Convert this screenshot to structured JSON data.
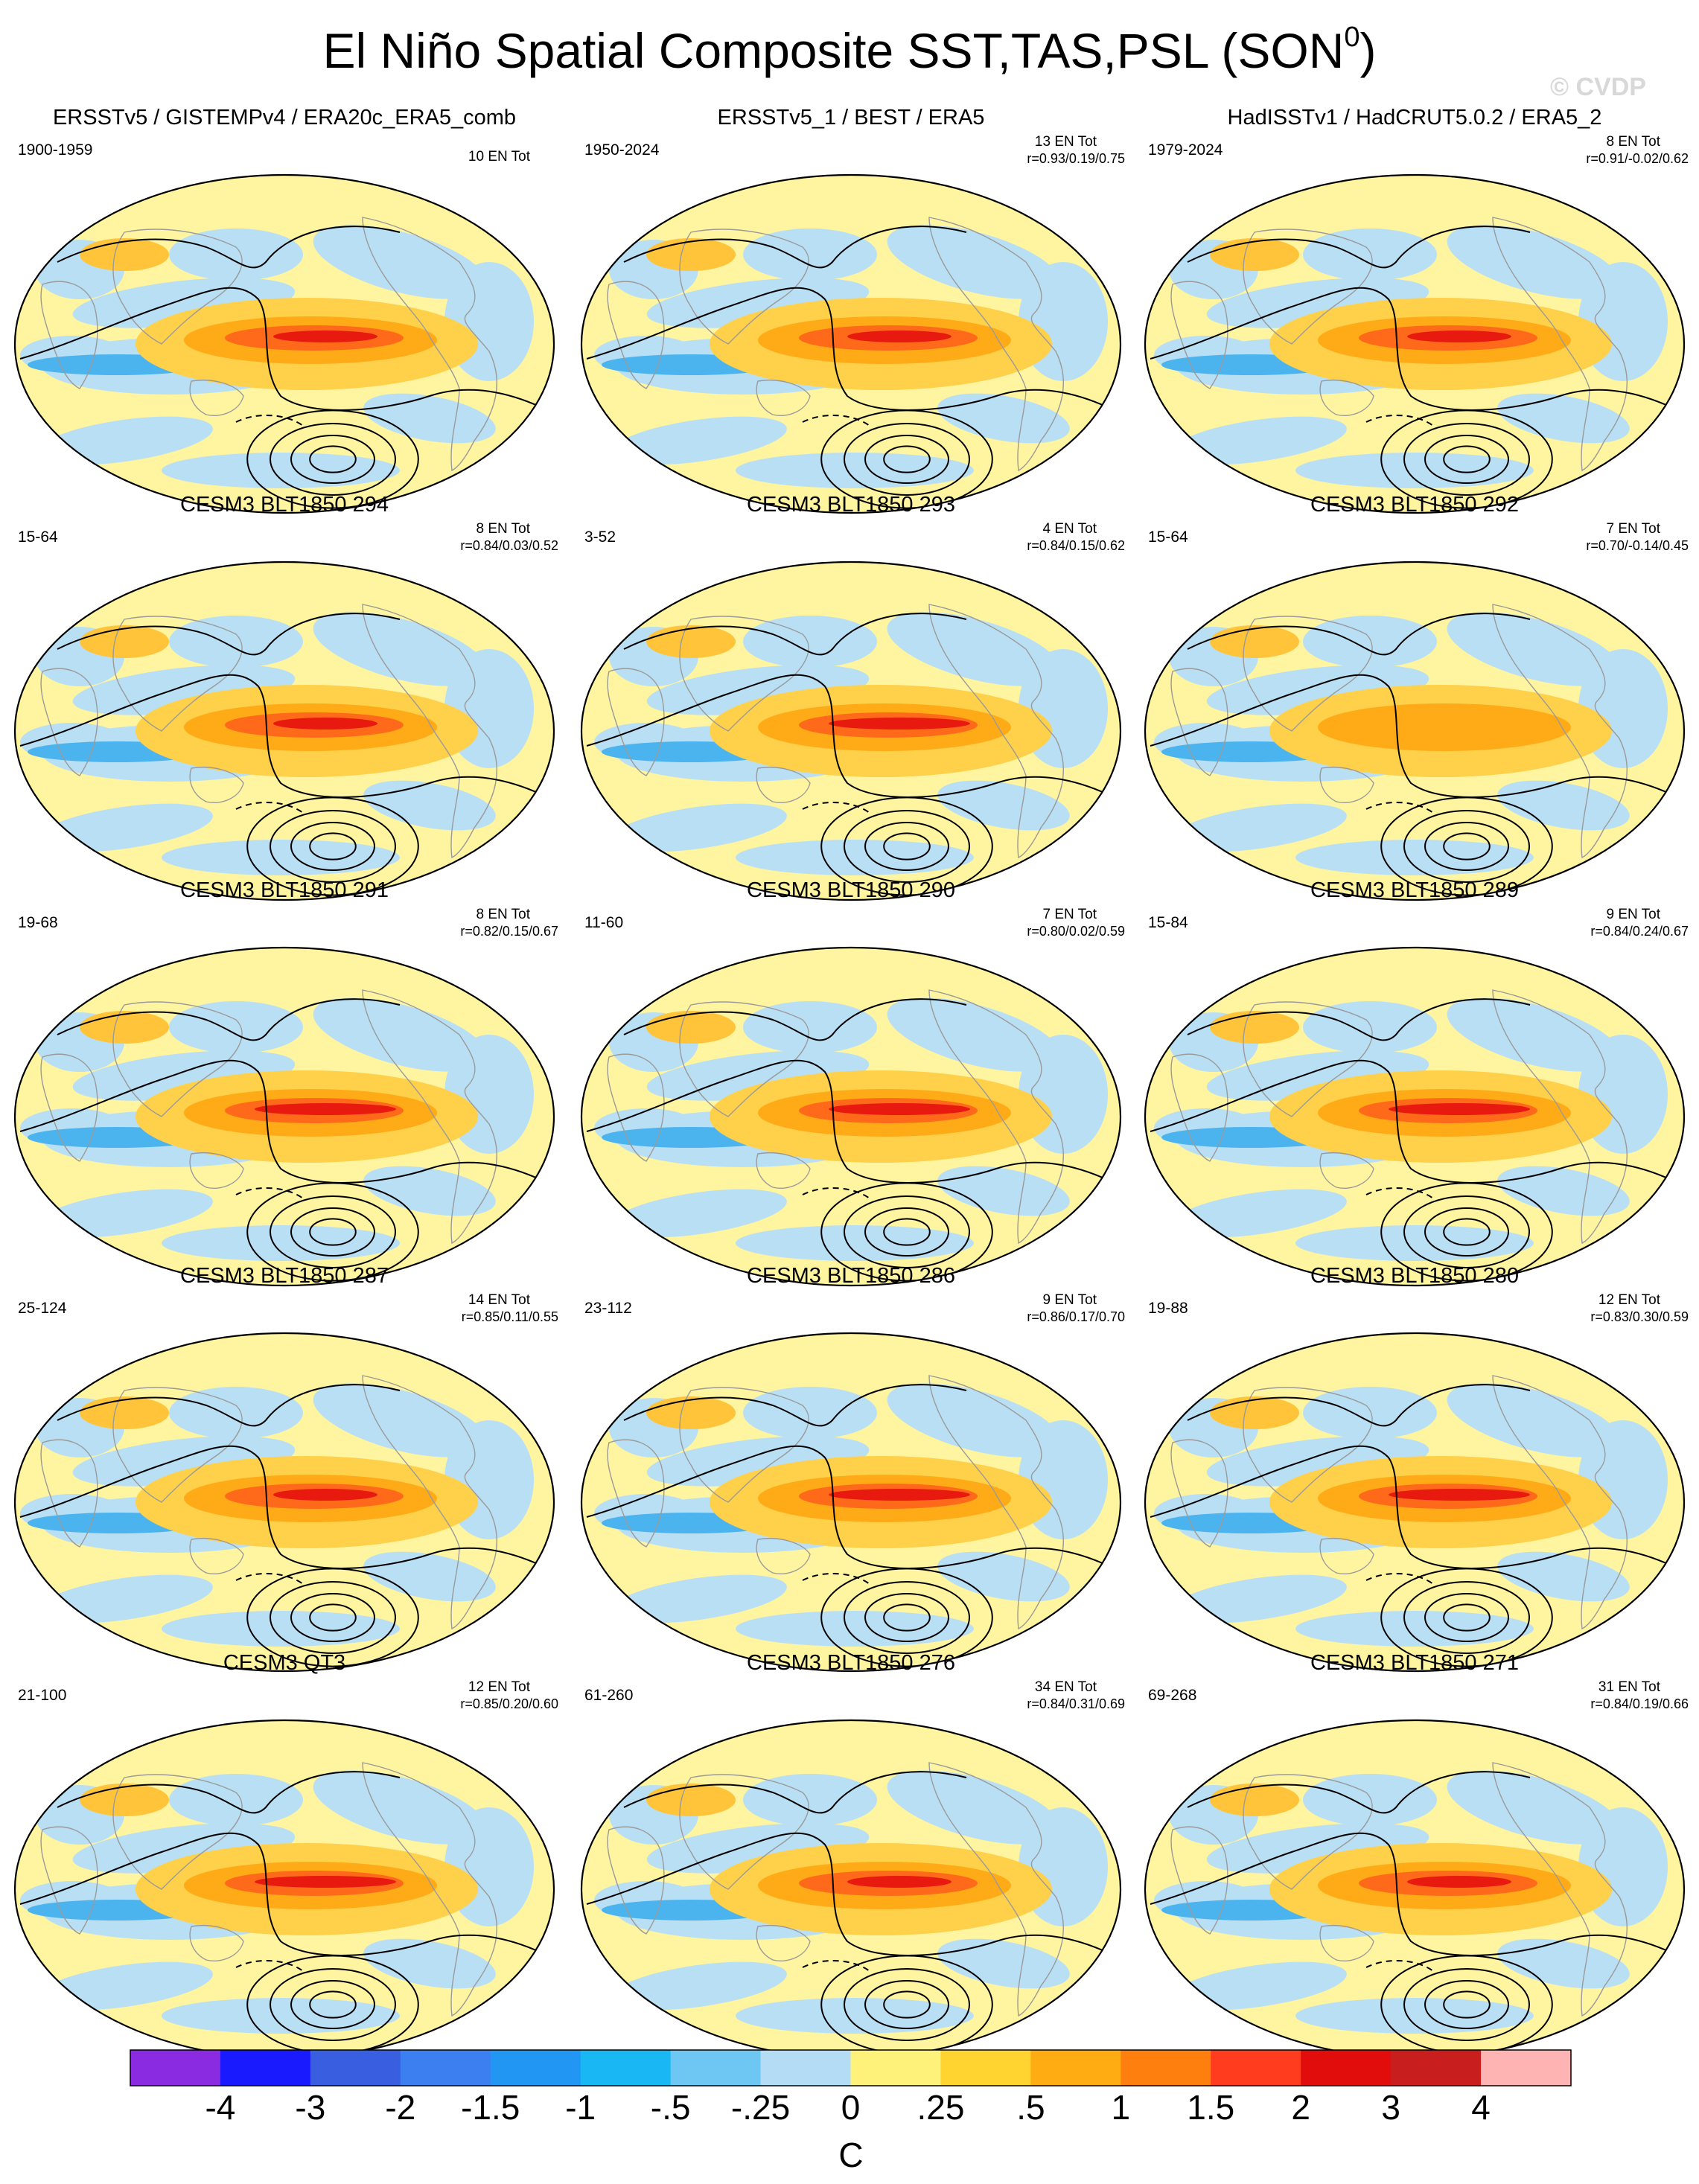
{
  "figure": {
    "title": "El Niño Spatial Composite SST,TAS,PSL (SON",
    "title_superscript": "0",
    "title_close": ")",
    "watermark": "© CVDP"
  },
  "panels": [
    {
      "title": "ERSSTv5 / GISTEMPv4 / ERA20c_ERA5_comb",
      "years": "1900-1959",
      "tot": "10 EN Tot",
      "stats": "",
      "level": "mid"
    },
    {
      "title": "ERSSTv5_1 / BEST / ERA5",
      "years": "1950-2024",
      "tot": "13 EN Tot",
      "stats": "r=0.93/0.19/0.75",
      "level": "mid"
    },
    {
      "title": "HadISSTv1 / HadCRUT5.0.2 / ERA5_2",
      "years": "1979-2024",
      "tot": "8 EN Tot",
      "stats": "r=0.91/-0.02/0.62",
      "level": "mid"
    },
    {
      "title": "CESM3 BLT1850 294",
      "years": "15-64",
      "tot": "8 EN Tot",
      "stats": "r=0.84/0.03/0.52",
      "level": "mid"
    },
    {
      "title": "CESM3 BLT1850 293",
      "years": "3-52",
      "tot": "4 EN Tot",
      "stats": "r=0.84/0.15/0.62",
      "level": "high"
    },
    {
      "title": "CESM3 BLT1850 292",
      "years": "15-64",
      "tot": "7 EN Tot",
      "stats": "r=0.70/-0.14/0.45",
      "level": "low"
    },
    {
      "title": "CESM3 BLT1850 291",
      "years": "19-68",
      "tot": "8 EN Tot",
      "stats": "r=0.82/0.15/0.67",
      "level": "high"
    },
    {
      "title": "CESM3 BLT1850 290",
      "years": "11-60",
      "tot": "7 EN Tot",
      "stats": "r=0.80/0.02/0.59",
      "level": "high"
    },
    {
      "title": "CESM3 BLT1850 289",
      "years": "15-84",
      "tot": "9 EN Tot",
      "stats": "r=0.84/0.24/0.67",
      "level": "high"
    },
    {
      "title": "CESM3 BLT1850 287",
      "years": "25-124",
      "tot": "14 EN Tot",
      "stats": "r=0.85/0.11/0.55",
      "level": "mid"
    },
    {
      "title": "CESM3 BLT1850 286",
      "years": "23-112",
      "tot": "9 EN Tot",
      "stats": "r=0.86/0.17/0.70",
      "level": "high"
    },
    {
      "title": "CESM3 BLT1850 280",
      "years": "19-88",
      "tot": "12 EN Tot",
      "stats": "r=0.83/0.30/0.59",
      "level": "high"
    },
    {
      "title": "CESM3 QT3",
      "years": "21-100",
      "tot": "12 EN Tot",
      "stats": "r=0.85/0.20/0.60",
      "level": "high"
    },
    {
      "title": "CESM3 BLT1850 276",
      "years": "61-260",
      "tot": "34 EN Tot",
      "stats": "r=0.84/0.31/0.69",
      "level": "mid"
    },
    {
      "title": "CESM3 BLT1850 271",
      "years": "69-268",
      "tot": "31 EN Tot",
      "stats": "r=0.84/0.19/0.66",
      "level": "mid"
    }
  ],
  "colorbar": {
    "unit": "C",
    "labels": [
      "-4",
      "-3",
      "-2",
      "-1.5",
      "-1",
      "-.5",
      "-.25",
      "0",
      ".25",
      ".5",
      "1",
      "1.5",
      "2",
      "3",
      "4"
    ],
    "colors": [
      "#8a2be2",
      "#1a1aff",
      "#3a5ee0",
      "#3c7ff0",
      "#2196f3",
      "#19b8f5",
      "#6ec6f2",
      "#b4dcf5",
      "#fff27a",
      "#ffd330",
      "#ffac12",
      "#ff7f0e",
      "#ff3c1e",
      "#e10c0c",
      "#c81e1e",
      "#ffb4b4"
    ]
  }
}
